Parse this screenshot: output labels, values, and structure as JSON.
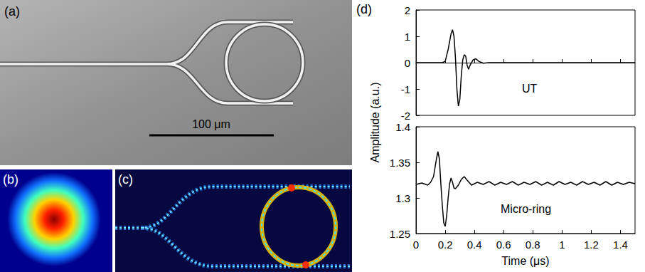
{
  "panels": {
    "a": {
      "label": "(a)",
      "scale_bar": "100 μm"
    },
    "b": {
      "label": "(b)"
    },
    "c": {
      "label": "(c)"
    },
    "d": {
      "label": "(d)",
      "ylabel": "Amplitude (a.u.)"
    }
  },
  "chart_data": [
    {
      "type": "line",
      "annotation": "UT",
      "color": "#000000",
      "grid": false,
      "tick_labels": "y",
      "xlim": [
        0,
        1.5
      ],
      "xticks": [
        0,
        0.2,
        0.4,
        0.6,
        0.8,
        1.0,
        1.2,
        1.4
      ],
      "ylim": [
        -2,
        2
      ],
      "yticks": [
        -2,
        -1,
        0,
        1,
        2
      ],
      "x": [
        0,
        0.1,
        0.18,
        0.2,
        0.22,
        0.24,
        0.25,
        0.26,
        0.27,
        0.28,
        0.29,
        0.3,
        0.31,
        0.32,
        0.33,
        0.34,
        0.35,
        0.36,
        0.37,
        0.39,
        0.41,
        0.43,
        0.46,
        0.5,
        0.6,
        0.8,
        1.0,
        1.2,
        1.4,
        1.5
      ],
      "values": [
        0,
        0,
        0,
        0.05,
        0.5,
        1.1,
        1.25,
        1.0,
        0.2,
        -1.0,
        -1.65,
        -1.4,
        -0.5,
        0.1,
        0.3,
        0.25,
        -0.1,
        -0.25,
        -0.1,
        0.1,
        0.15,
        0.05,
        -0.02,
        0,
        0,
        0,
        0,
        0,
        0,
        0
      ]
    },
    {
      "type": "line",
      "annotation": "Micro-ring",
      "color": "#000000",
      "grid": false,
      "xlabel": "Time (μs)",
      "xlim": [
        0,
        1.5
      ],
      "xticks": [
        0,
        0.2,
        0.4,
        0.6,
        0.8,
        1.0,
        1.2,
        1.4
      ],
      "ylim": [
        1.25,
        1.4
      ],
      "yticks": [
        1.25,
        1.3,
        1.35,
        1.4
      ],
      "x": [
        0,
        0.04,
        0.08,
        0.1,
        0.12,
        0.14,
        0.15,
        0.16,
        0.17,
        0.18,
        0.19,
        0.2,
        0.21,
        0.22,
        0.23,
        0.24,
        0.25,
        0.26,
        0.27,
        0.29,
        0.31,
        0.33,
        0.35,
        0.38,
        0.42,
        0.46,
        0.5,
        0.54,
        0.58,
        0.62,
        0.66,
        0.7,
        0.74,
        0.78,
        0.82,
        0.86,
        0.9,
        0.94,
        0.98,
        1.02,
        1.06,
        1.1,
        1.14,
        1.18,
        1.22,
        1.26,
        1.3,
        1.34,
        1.38,
        1.42,
        1.46,
        1.5
      ],
      "values": [
        1.319,
        1.321,
        1.318,
        1.322,
        1.33,
        1.355,
        1.365,
        1.355,
        1.32,
        1.29,
        1.265,
        1.26,
        1.275,
        1.3,
        1.32,
        1.328,
        1.322,
        1.314,
        1.313,
        1.318,
        1.326,
        1.33,
        1.325,
        1.318,
        1.322,
        1.319,
        1.323,
        1.318,
        1.322,
        1.319,
        1.323,
        1.318,
        1.322,
        1.319,
        1.323,
        1.318,
        1.322,
        1.318,
        1.323,
        1.319,
        1.322,
        1.318,
        1.323,
        1.319,
        1.322,
        1.318,
        1.323,
        1.318,
        1.322,
        1.319,
        1.322,
        1.32
      ]
    }
  ]
}
